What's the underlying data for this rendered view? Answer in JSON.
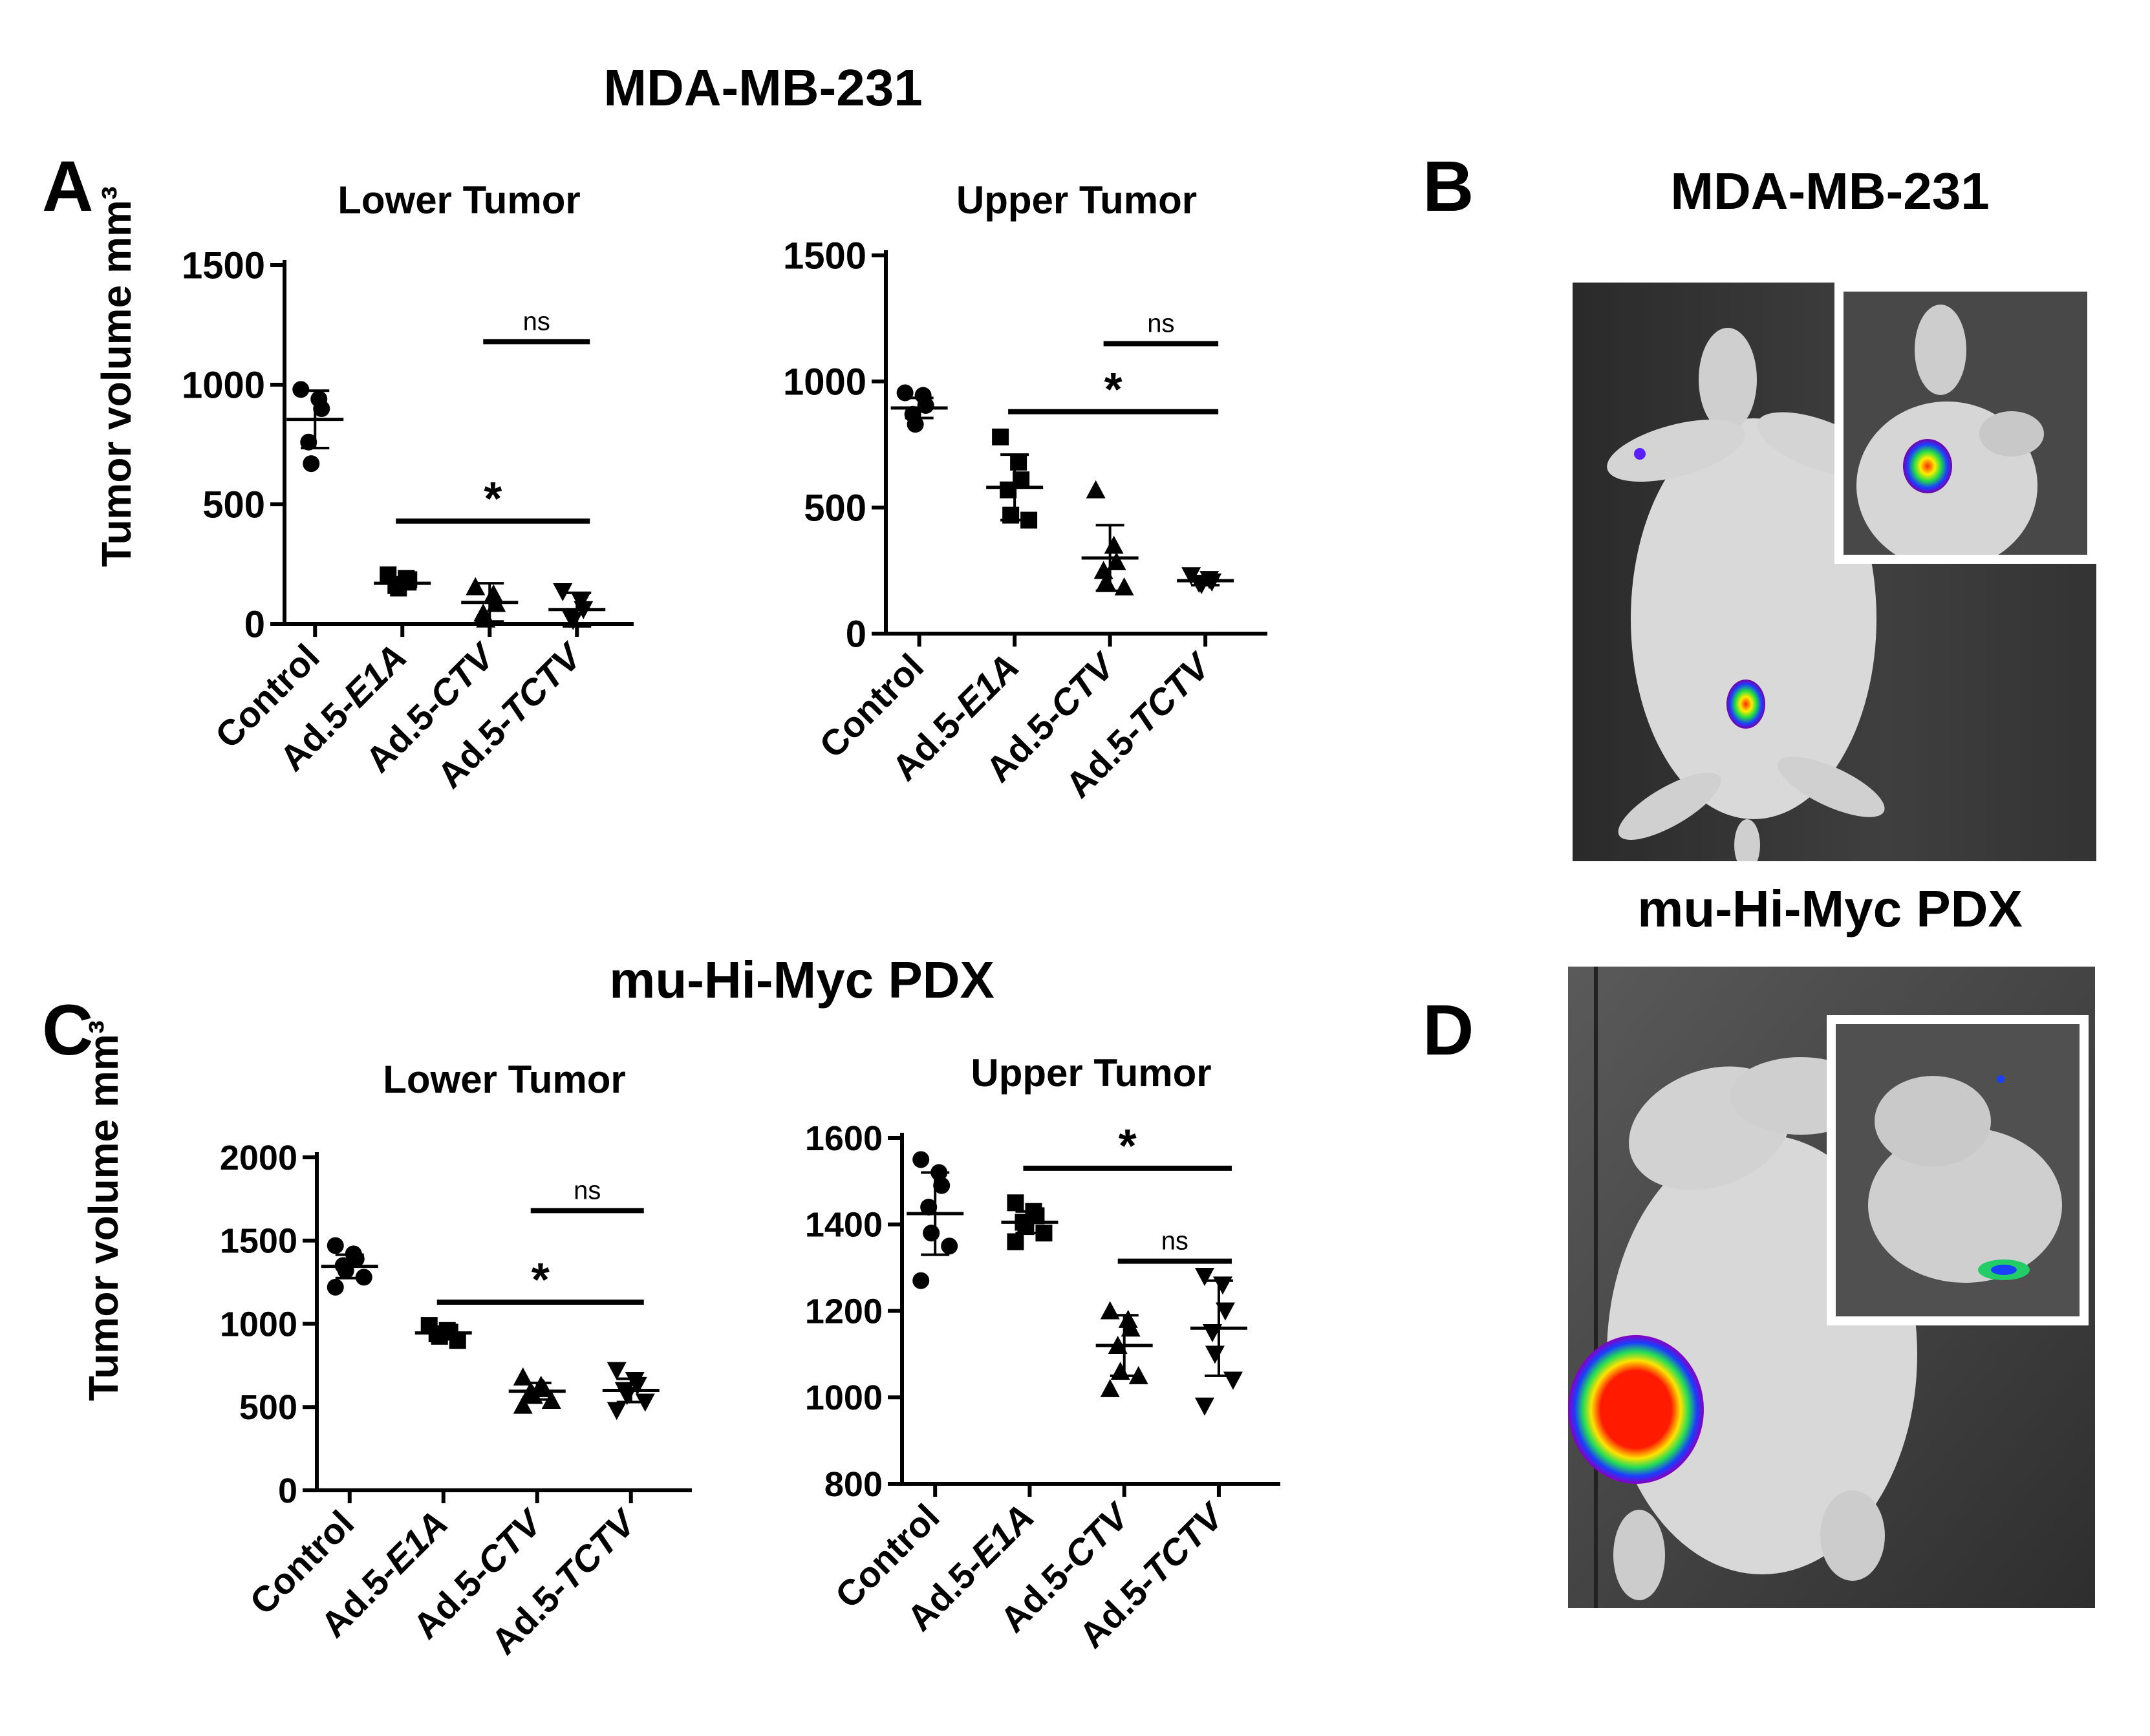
{
  "figure": {
    "top_title": "MDA-MB-231",
    "c_title": "mu-Hi-Myc PDX",
    "b_title": "MDA-MB-231",
    "d_title": "mu-Hi-Myc PDX",
    "panel_letters": {
      "A": "A",
      "B": "B",
      "C": "C",
      "D": "D"
    },
    "ylabel_a": "Tumor volume mm³",
    "ylabel_c": "Tumor volume mm³"
  },
  "chart_data": [
    {
      "id": "A-lower",
      "type": "scatter",
      "title": "Lower Tumor",
      "ylabel": "Tumor volume mm³",
      "ylim": [
        0,
        1500
      ],
      "yticks": [
        0,
        500,
        1000,
        1500
      ],
      "categories": [
        {
          "prefix": "Control",
          "italic": ""
        },
        {
          "prefix": "Ad.5-",
          "italic": "E1A"
        },
        {
          "prefix": "Ad.5-",
          "italic": "CTV"
        },
        {
          "prefix": "Ad.5-",
          "italic": "TCTV"
        }
      ],
      "markers": [
        "circle",
        "square",
        "triangle",
        "triangle-down"
      ],
      "groups": [
        {
          "points": [
            980,
            940,
            900,
            760,
            670
          ],
          "mean": 855,
          "sd": 120
        },
        {
          "points": [
            205,
            190,
            185,
            160,
            150
          ],
          "mean": 170,
          "sd": 25
        },
        {
          "points": [
            155,
            125,
            85,
            45,
            20
          ],
          "mean": 90,
          "sd": 80
        },
        {
          "points": [
            135,
            95,
            60,
            30,
            15
          ],
          "mean": 60,
          "sd": 70
        }
      ],
      "annotations": [
        {
          "text": "ns",
          "from": 2,
          "to": 3,
          "y": 1180
        },
        {
          "text": "*",
          "from": 1,
          "to": 3,
          "y": 430
        }
      ]
    },
    {
      "id": "A-upper",
      "type": "scatter",
      "title": "Upper Tumor",
      "ylabel": "",
      "ylim": [
        0,
        1500
      ],
      "yticks": [
        0,
        500,
        1000,
        1500
      ],
      "categories": [
        {
          "prefix": "Control",
          "italic": ""
        },
        {
          "prefix": "Ad.5-",
          "italic": "E1A"
        },
        {
          "prefix": "Ad.5-",
          "italic": "CTV"
        },
        {
          "prefix": "Ad.5-",
          "italic": "TCTV"
        }
      ],
      "markers": [
        "circle",
        "square",
        "triangle",
        "triangle-down"
      ],
      "groups": [
        {
          "points": [
            955,
            945,
            905,
            870,
            830
          ],
          "mean": 895,
          "sd": 40
        },
        {
          "points": [
            780,
            680,
            610,
            570,
            470,
            450
          ],
          "mean": 580,
          "sd": 130
        },
        {
          "points": [
            570,
            350,
            285,
            250,
            205,
            185
          ],
          "mean": 300,
          "sd": 130
        },
        {
          "points": [
            230,
            215,
            205,
            200,
            195
          ],
          "mean": 210,
          "sd": 18
        }
      ],
      "annotations": [
        {
          "text": "ns",
          "from": 2,
          "to": 3,
          "y": 1150
        },
        {
          "text": "*",
          "from": 1,
          "to": 3,
          "y": 880
        }
      ]
    },
    {
      "id": "C-lower",
      "type": "scatter",
      "title": "Lower Tumor",
      "ylabel": "Tumor volume mm³",
      "ylim": [
        0,
        2000
      ],
      "yticks": [
        0,
        500,
        1000,
        1500,
        2000
      ],
      "categories": [
        {
          "prefix": "Control",
          "italic": ""
        },
        {
          "prefix": "Ad.5-",
          "italic": "E1A"
        },
        {
          "prefix": "Ad.5-",
          "italic": "CTV"
        },
        {
          "prefix": "Ad.5-",
          "italic": "TCTV"
        }
      ],
      "markers": [
        "circle",
        "square",
        "triangle",
        "triangle-down"
      ],
      "groups": [
        {
          "points": [
            1470,
            1420,
            1390,
            1350,
            1320,
            1280,
            1220
          ],
          "mean": 1345,
          "sd": 70
        },
        {
          "points": [
            990,
            960,
            950,
            940,
            925,
            900
          ],
          "mean": 945,
          "sd": 25
        },
        {
          "points": [
            680,
            630,
            610,
            595,
            570,
            540,
            510
          ],
          "mean": 595,
          "sd": 50
        },
        {
          "points": [
            720,
            660,
            630,
            600,
            570,
            530,
            480
          ],
          "mean": 600,
          "sd": 70
        }
      ],
      "annotations": [
        {
          "text": "ns",
          "from": 2,
          "to": 3,
          "y": 1680
        },
        {
          "text": "*",
          "from": 1,
          "to": 3,
          "y": 1130
        }
      ]
    },
    {
      "id": "C-upper",
      "type": "scatter",
      "title": "Upper Tumor",
      "ylabel": "",
      "ylim": [
        800,
        1600
      ],
      "yticks": [
        800,
        1000,
        1200,
        1400,
        1600
      ],
      "categories": [
        {
          "prefix": "Control",
          "italic": ""
        },
        {
          "prefix": "Ad.5-",
          "italic": "E1A"
        },
        {
          "prefix": "Ad.5-",
          "italic": "CTV"
        },
        {
          "prefix": "Ad.5-",
          "italic": "TCTV"
        }
      ],
      "markers": [
        "circle",
        "square",
        "triangle",
        "triangle-down"
      ],
      "groups": [
        {
          "points": [
            1550,
            1520,
            1490,
            1440,
            1380,
            1350,
            1270
          ],
          "mean": 1425,
          "sd": 95
        },
        {
          "points": [
            1450,
            1430,
            1420,
            1405,
            1395,
            1380,
            1360
          ],
          "mean": 1405,
          "sd": 25
        },
        {
          "points": [
            1200,
            1180,
            1160,
            1120,
            1060,
            1050,
            1020
          ],
          "mean": 1120,
          "sd": 70
        },
        {
          "points": [
            1280,
            1260,
            1200,
            1150,
            1100,
            1040,
            980
          ],
          "mean": 1160,
          "sd": 110
        }
      ],
      "annotations": [
        {
          "text": "*",
          "from": 1,
          "to": 3,
          "y": 1530
        },
        {
          "text": "ns",
          "from": 2,
          "to": 3,
          "y": 1315
        }
      ]
    }
  ]
}
